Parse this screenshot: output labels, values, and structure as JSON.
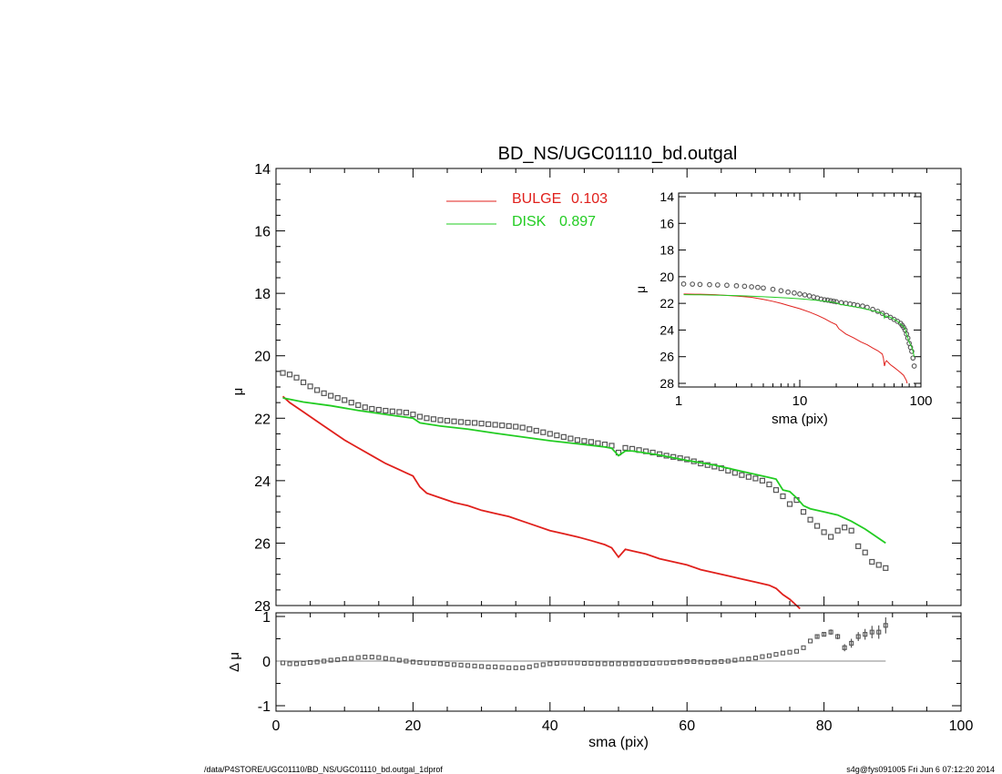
{
  "chart_data": [
    {
      "type": "scatter",
      "role": "main",
      "title": "BD_NS/UGC01110_bd.outgal",
      "xlabel": "",
      "ylabel": "μ",
      "xlim": [
        0,
        100
      ],
      "ylim": [
        28,
        14
      ],
      "y_ticks": [
        14,
        16,
        18,
        20,
        22,
        24,
        26,
        28
      ],
      "legend": {
        "placement": "top-center",
        "entries": [
          {
            "name": "BULGE",
            "value": "0.103",
            "color": "#e0201c"
          },
          {
            "name": "DISK",
            "value": "0.897",
            "color": "#22cc22"
          }
        ]
      },
      "series": [
        {
          "name": "data",
          "style": "squares",
          "color": "#555555",
          "x": [
            1,
            2,
            3,
            4,
            5,
            6,
            7,
            8,
            9,
            10,
            11,
            12,
            13,
            14,
            15,
            16,
            17,
            18,
            19,
            20,
            21,
            22,
            23,
            24,
            25,
            26,
            27,
            28,
            29,
            30,
            31,
            32,
            33,
            34,
            35,
            36,
            37,
            38,
            39,
            40,
            41,
            42,
            43,
            44,
            45,
            46,
            47,
            48,
            49,
            50,
            51,
            52,
            53,
            54,
            55,
            56,
            57,
            58,
            59,
            60,
            61,
            62,
            63,
            64,
            65,
            66,
            67,
            68,
            69,
            70,
            71,
            72,
            73,
            74,
            75,
            76,
            77,
            78,
            79,
            80,
            81,
            82,
            83,
            84,
            85,
            86,
            87,
            88,
            89
          ],
          "y": [
            20.55,
            20.6,
            20.7,
            20.85,
            20.98,
            21.1,
            21.2,
            21.28,
            21.35,
            21.42,
            21.5,
            21.58,
            21.65,
            21.7,
            21.73,
            21.76,
            21.78,
            21.8,
            21.82,
            21.88,
            21.95,
            22.0,
            22.03,
            22.06,
            22.08,
            22.1,
            22.12,
            22.14,
            22.15,
            22.17,
            22.19,
            22.21,
            22.23,
            22.25,
            22.27,
            22.3,
            22.35,
            22.4,
            22.45,
            22.5,
            22.55,
            22.6,
            22.65,
            22.7,
            22.73,
            22.76,
            22.8,
            22.84,
            22.88,
            23.1,
            22.95,
            22.98,
            23.02,
            23.06,
            23.1,
            23.15,
            23.2,
            23.24,
            23.28,
            23.32,
            23.38,
            23.45,
            23.5,
            23.55,
            23.6,
            23.68,
            23.75,
            23.82,
            23.88,
            23.93,
            24.0,
            24.12,
            24.3,
            24.5,
            24.75,
            24.62,
            25.0,
            25.25,
            25.45,
            25.65,
            25.8,
            25.6,
            25.5,
            25.6,
            26.1,
            26.3,
            26.6,
            26.7,
            26.8
          ]
        },
        {
          "name": "BULGE",
          "style": "line",
          "color": "#e0201c",
          "x": [
            1,
            2,
            4,
            6,
            8,
            10,
            12,
            14,
            16,
            18,
            19,
            20,
            21,
            22,
            24,
            26,
            28,
            30,
            32,
            34,
            36,
            38,
            40,
            42,
            44,
            46,
            48,
            49,
            50,
            51,
            52,
            54,
            56,
            58,
            60,
            62,
            64,
            66,
            68,
            70,
            72,
            73,
            74,
            75,
            76,
            76.5
          ],
          "y": [
            21.3,
            21.5,
            21.8,
            22.1,
            22.4,
            22.7,
            22.95,
            23.2,
            23.45,
            23.65,
            23.75,
            23.85,
            24.2,
            24.4,
            24.55,
            24.7,
            24.8,
            24.95,
            25.05,
            25.15,
            25.3,
            25.45,
            25.6,
            25.7,
            25.8,
            25.92,
            26.05,
            26.15,
            26.45,
            26.2,
            26.25,
            26.35,
            26.5,
            26.6,
            26.7,
            26.85,
            26.95,
            27.05,
            27.15,
            27.25,
            27.35,
            27.45,
            27.65,
            27.8,
            28.0,
            28.1
          ]
        },
        {
          "name": "DISK",
          "style": "line",
          "color": "#22cc22",
          "x": [
            1,
            4,
            8,
            12,
            16,
            20,
            21,
            24,
            28,
            32,
            36,
            40,
            44,
            48,
            49,
            50,
            51,
            52,
            56,
            60,
            64,
            68,
            70,
            72,
            73,
            74,
            75,
            76,
            77,
            78,
            80,
            82,
            84,
            86,
            88,
            89
          ],
          "y": [
            21.35,
            21.48,
            21.6,
            21.75,
            21.88,
            22.0,
            22.15,
            22.25,
            22.35,
            22.48,
            22.6,
            22.72,
            22.82,
            22.92,
            22.96,
            23.2,
            23.05,
            23.05,
            23.18,
            23.35,
            23.5,
            23.7,
            23.8,
            23.9,
            23.95,
            24.3,
            24.35,
            24.55,
            24.8,
            24.9,
            25.0,
            25.1,
            25.3,
            25.55,
            25.85,
            26.0
          ]
        }
      ]
    },
    {
      "type": "scatter",
      "role": "residual",
      "xlabel": "sma (pix)",
      "ylabel": "Δ μ",
      "xlim": [
        0,
        100
      ],
      "ylim": [
        -1,
        1
      ],
      "x_ticks": [
        0,
        20,
        40,
        60,
        80,
        100
      ],
      "y_ticks": [
        -1,
        0,
        1
      ],
      "reference_line": 0,
      "series": [
        {
          "name": "residual",
          "style": "squares",
          "color": "#555555",
          "x": [
            1,
            2,
            3,
            4,
            5,
            6,
            7,
            8,
            9,
            10,
            11,
            12,
            13,
            14,
            15,
            16,
            17,
            18,
            19,
            20,
            21,
            22,
            23,
            24,
            25,
            26,
            27,
            28,
            29,
            30,
            31,
            32,
            33,
            34,
            35,
            36,
            37,
            38,
            39,
            40,
            41,
            42,
            43,
            44,
            45,
            46,
            47,
            48,
            49,
            50,
            51,
            52,
            53,
            54,
            55,
            56,
            57,
            58,
            59,
            60,
            61,
            62,
            63,
            64,
            65,
            66,
            67,
            68,
            69,
            70,
            71,
            72,
            73,
            74,
            75,
            76,
            77,
            78,
            79,
            80,
            81,
            82,
            83,
            84,
            85,
            86,
            87,
            88,
            89
          ],
          "y": [
            -0.04,
            -0.06,
            -0.06,
            -0.05,
            -0.03,
            -0.02,
            0.0,
            0.02,
            0.03,
            0.05,
            0.06,
            0.08,
            0.09,
            0.09,
            0.08,
            0.06,
            0.04,
            0.02,
            0.0,
            -0.02,
            -0.03,
            -0.04,
            -0.05,
            -0.06,
            -0.07,
            -0.08,
            -0.09,
            -0.1,
            -0.11,
            -0.12,
            -0.13,
            -0.13,
            -0.14,
            -0.15,
            -0.15,
            -0.15,
            -0.13,
            -0.1,
            -0.08,
            -0.06,
            -0.05,
            -0.04,
            -0.04,
            -0.04,
            -0.05,
            -0.05,
            -0.06,
            -0.06,
            -0.06,
            -0.06,
            -0.06,
            -0.06,
            -0.06,
            -0.05,
            -0.05,
            -0.04,
            -0.04,
            -0.03,
            -0.02,
            -0.01,
            -0.01,
            -0.02,
            -0.03,
            -0.02,
            -0.01,
            0.0,
            0.02,
            0.04,
            0.05,
            0.07,
            0.1,
            0.12,
            0.15,
            0.18,
            0.2,
            0.22,
            0.3,
            0.45,
            0.55,
            0.6,
            0.65,
            0.55,
            0.3,
            0.4,
            0.55,
            0.6,
            0.65,
            0.65,
            0.8
          ],
          "err": [
            0,
            0,
            0,
            0,
            0,
            0,
            0,
            0,
            0,
            0,
            0,
            0,
            0,
            0,
            0,
            0,
            0,
            0,
            0,
            0,
            0,
            0,
            0,
            0,
            0,
            0,
            0,
            0,
            0,
            0,
            0,
            0,
            0,
            0,
            0,
            0,
            0,
            0,
            0,
            0,
            0,
            0,
            0,
            0,
            0,
            0,
            0,
            0,
            0,
            0,
            0,
            0,
            0,
            0,
            0,
            0,
            0,
            0,
            0,
            0,
            0,
            0,
            0,
            0,
            0,
            0,
            0,
            0,
            0,
            0,
            0,
            0,
            0,
            0,
            0,
            0,
            0,
            0,
            0.04,
            0.05,
            0.06,
            0.06,
            0.08,
            0.1,
            0.1,
            0.12,
            0.14,
            0.15,
            0.18
          ]
        }
      ]
    },
    {
      "type": "scatter",
      "role": "inset",
      "xlabel": "sma (pix)",
      "ylabel": "μ",
      "xscale": "log",
      "xlim": [
        1,
        100
      ],
      "ylim": [
        28,
        14
      ],
      "x_ticks": [
        1,
        10,
        100
      ],
      "y_ticks": [
        14,
        16,
        18,
        20,
        22,
        24,
        26,
        28
      ],
      "series": [
        {
          "name": "data",
          "style": "circles",
          "color": "#555555",
          "x": [
            1.1,
            1.3,
            1.5,
            1.8,
            2.1,
            2.5,
            3,
            3.5,
            4,
            4.5,
            5,
            6,
            7,
            8,
            9,
            10,
            11,
            12,
            13,
            14,
            15,
            16,
            17,
            18,
            19,
            20,
            22,
            24,
            26,
            28,
            30,
            33,
            36,
            40,
            44,
            48,
            52,
            56,
            60,
            64,
            68,
            70,
            72,
            74,
            76,
            78,
            80,
            82,
            84,
            86,
            88
          ],
          "y": [
            20.55,
            20.56,
            20.58,
            20.6,
            20.62,
            20.64,
            20.68,
            20.72,
            20.76,
            20.8,
            20.85,
            20.95,
            21.05,
            21.15,
            21.22,
            21.3,
            21.37,
            21.44,
            21.52,
            21.6,
            21.68,
            21.73,
            21.76,
            21.8,
            21.84,
            21.88,
            21.95,
            22.0,
            22.05,
            22.1,
            22.15,
            22.2,
            22.3,
            22.45,
            22.6,
            22.75,
            22.9,
            23.05,
            23.2,
            23.35,
            23.5,
            23.65,
            23.8,
            24.0,
            24.3,
            24.6,
            25.0,
            25.3,
            25.6,
            26.1,
            26.7
          ]
        },
        {
          "name": "BULGE",
          "style": "line",
          "color": "#e0201c",
          "x": [
            1.1,
            1.5,
            2,
            3,
            4,
            5,
            6,
            7,
            8,
            10,
            12,
            14,
            16,
            18,
            20,
            21,
            24,
            28,
            32,
            36,
            40,
            44,
            48,
            49,
            50,
            51,
            52,
            56,
            60,
            64,
            68,
            72,
            76,
            77
          ],
          "y": [
            21.3,
            21.32,
            21.35,
            21.45,
            21.55,
            21.7,
            21.85,
            22.0,
            22.15,
            22.4,
            22.65,
            22.9,
            23.15,
            23.4,
            23.6,
            23.9,
            24.3,
            24.6,
            24.9,
            25.1,
            25.35,
            25.55,
            25.8,
            26.1,
            26.7,
            26.4,
            26.3,
            26.6,
            26.8,
            27.0,
            27.2,
            27.4,
            27.8,
            28.0
          ]
        },
        {
          "name": "DISK",
          "style": "line",
          "color": "#22cc22",
          "x": [
            1.1,
            1.5,
            2,
            3,
            4,
            5,
            6,
            8,
            10,
            12,
            14,
            16,
            18,
            20,
            21,
            24,
            28,
            32,
            36,
            40,
            44,
            48,
            49,
            50,
            51,
            52,
            56,
            60,
            64,
            68,
            72,
            74,
            76,
            78,
            80,
            82,
            84,
            86,
            88
          ],
          "y": [
            21.35,
            21.36,
            21.38,
            21.42,
            21.46,
            21.5,
            21.54,
            21.6,
            21.66,
            21.72,
            21.78,
            21.84,
            21.9,
            21.96,
            22.05,
            22.15,
            22.25,
            22.35,
            22.45,
            22.55,
            22.65,
            22.75,
            22.8,
            23.1,
            22.95,
            22.95,
            23.05,
            23.2,
            23.35,
            23.55,
            23.75,
            23.9,
            24.3,
            24.6,
            24.9,
            25.1,
            25.3,
            25.6,
            26.0
          ]
        }
      ]
    }
  ],
  "footer": {
    "left": "/data/P4STORE/UGC01110/BD_NS/UGC01110_bd.outgal_1dprof",
    "right": "s4g@fys091005  Fri Jun  6 07:12:20 2014"
  }
}
